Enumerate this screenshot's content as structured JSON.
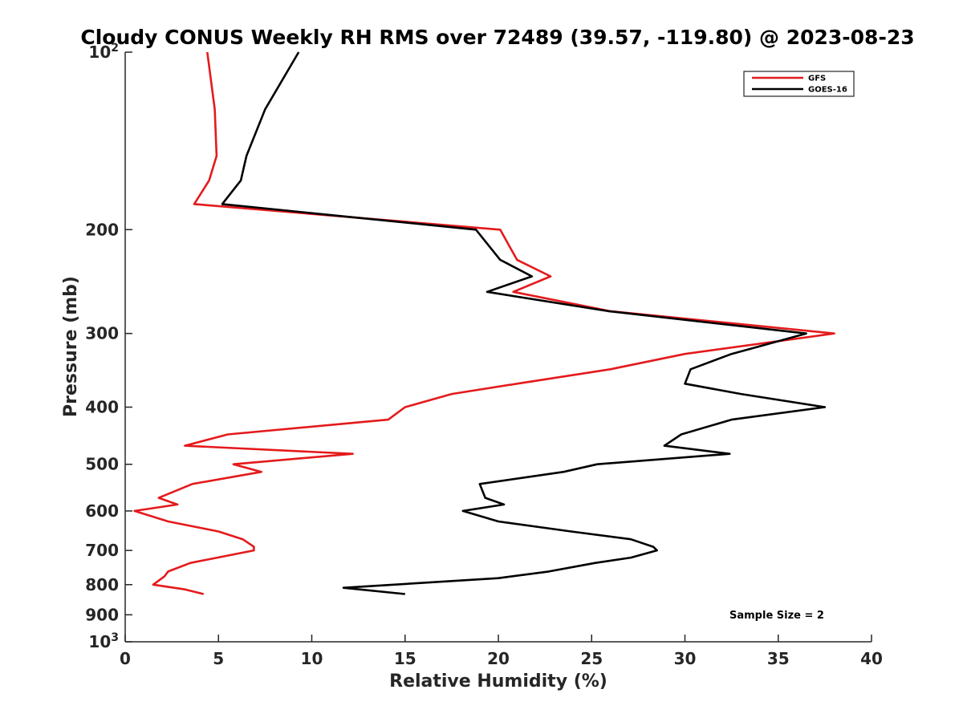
{
  "chart_data": {
    "type": "line",
    "title": "Cloudy CONUS Weekly RH RMS over 72489 (39.57, -119.80) @ 2023-08-23",
    "xlabel": "Relative Humidity (%)",
    "ylabel": "Pressure (mb)",
    "xlim": [
      0,
      40
    ],
    "ylim": [
      100,
      1000
    ],
    "yscale": "log",
    "yreversed": true,
    "xticks": [
      0,
      5,
      10,
      15,
      20,
      25,
      30,
      35,
      40
    ],
    "yticks": [
      {
        "value": 100,
        "label": "10",
        "sup": "2"
      },
      {
        "value": 200,
        "label": "200",
        "sup": ""
      },
      {
        "value": 300,
        "label": "300",
        "sup": ""
      },
      {
        "value": 400,
        "label": "400",
        "sup": ""
      },
      {
        "value": 500,
        "label": "500",
        "sup": ""
      },
      {
        "value": 600,
        "label": "600",
        "sup": ""
      },
      {
        "value": 700,
        "label": "700",
        "sup": ""
      },
      {
        "value": 800,
        "label": "800",
        "sup": ""
      },
      {
        "value": 900,
        "label": "900",
        "sup": ""
      },
      {
        "value": 1000,
        "label": "10",
        "sup": "3"
      }
    ],
    "grid": false,
    "legend_position": "top-right",
    "annotation": "Sample Size = 2",
    "series": [
      {
        "name": "GFS",
        "color": "#e41a1c",
        "points": [
          [
            4.4,
            100
          ],
          [
            4.8,
            125
          ],
          [
            4.9,
            150
          ],
          [
            4.5,
            165
          ],
          [
            3.7,
            181
          ],
          [
            20.1,
            200
          ],
          [
            21.0,
            225
          ],
          [
            22.8,
            240
          ],
          [
            20.8,
            255
          ],
          [
            26.0,
            275
          ],
          [
            38.0,
            300
          ],
          [
            30.0,
            325
          ],
          [
            26.0,
            345
          ],
          [
            21.0,
            365
          ],
          [
            17.5,
            380
          ],
          [
            15.0,
            400
          ],
          [
            14.1,
            420
          ],
          [
            5.5,
            445
          ],
          [
            3.2,
            465
          ],
          [
            12.2,
            480
          ],
          [
            5.8,
            500
          ],
          [
            7.3,
            515
          ],
          [
            3.6,
            540
          ],
          [
            1.8,
            570
          ],
          [
            2.8,
            585
          ],
          [
            0.5,
            600
          ],
          [
            2.3,
            625
          ],
          [
            5.0,
            650
          ],
          [
            6.3,
            670
          ],
          [
            6.9,
            690
          ],
          [
            6.9,
            700
          ],
          [
            3.5,
            735
          ],
          [
            2.3,
            760
          ],
          [
            2.1,
            775
          ],
          [
            1.5,
            800
          ],
          [
            3.2,
            815
          ],
          [
            4.2,
            830
          ]
        ]
      },
      {
        "name": "GOES-16",
        "color": "#000000",
        "points": [
          [
            9.3,
            100
          ],
          [
            7.5,
            125
          ],
          [
            6.5,
            150
          ],
          [
            6.2,
            165
          ],
          [
            5.2,
            181
          ],
          [
            18.8,
            200
          ],
          [
            20.1,
            225
          ],
          [
            21.8,
            240
          ],
          [
            19.4,
            255
          ],
          [
            25.9,
            275
          ],
          [
            36.5,
            300
          ],
          [
            32.5,
            325
          ],
          [
            30.3,
            345
          ],
          [
            30.0,
            365
          ],
          [
            33.0,
            380
          ],
          [
            37.5,
            400
          ],
          [
            32.5,
            420
          ],
          [
            29.8,
            445
          ],
          [
            28.9,
            465
          ],
          [
            32.4,
            480
          ],
          [
            25.3,
            500
          ],
          [
            23.5,
            515
          ],
          [
            19.0,
            540
          ],
          [
            19.3,
            570
          ],
          [
            20.3,
            585
          ],
          [
            18.1,
            600
          ],
          [
            20.0,
            625
          ],
          [
            23.9,
            650
          ],
          [
            27.1,
            670
          ],
          [
            28.3,
            690
          ],
          [
            28.5,
            700
          ],
          [
            27.1,
            720
          ],
          [
            25.2,
            735
          ],
          [
            22.7,
            760
          ],
          [
            20.0,
            780
          ],
          [
            11.7,
            810
          ],
          [
            15.0,
            830
          ]
        ]
      }
    ]
  }
}
